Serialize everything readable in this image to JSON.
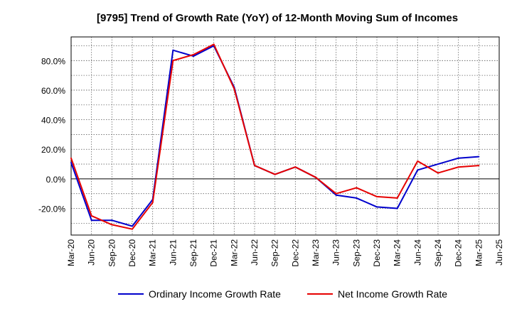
{
  "chart_data": {
    "type": "line",
    "title": "[9795]  Trend of Growth Rate (YoY) of 12-Month Moving Sum of Incomes",
    "xlabel": "",
    "ylabel": "",
    "x": [
      "Mar-20",
      "Jun-20",
      "Sep-20",
      "Dec-20",
      "Mar-21",
      "Jun-21",
      "Sep-21",
      "Dec-21",
      "Mar-22",
      "Jun-22",
      "Sep-22",
      "Dec-22",
      "Mar-23",
      "Jun-23",
      "Sep-23",
      "Dec-23",
      "Mar-24",
      "Jun-24",
      "Sep-24",
      "Dec-24",
      "Mar-25",
      "Jun-25"
    ],
    "ylim": [
      -38,
      96
    ],
    "yticks": [
      -20,
      0,
      20,
      40,
      60,
      80
    ],
    "ytick_labels": [
      "-20.0%",
      "0.0%",
      "20.0%",
      "40.0%",
      "60.0%",
      "80.0%"
    ],
    "grid": true,
    "legend_position": "bottom",
    "series": [
      {
        "name": "Ordinary Income Growth Rate",
        "color": "#0000cc",
        "values": [
          11,
          -28,
          -28,
          -32,
          -14,
          87,
          83,
          90,
          62,
          9,
          3,
          8,
          1,
          -11,
          -13,
          -19,
          -20,
          6,
          10,
          14,
          15,
          null
        ]
      },
      {
        "name": "Net Income Growth Rate",
        "color": "#e60000",
        "values": [
          14,
          -25,
          -31,
          -34,
          -16,
          80,
          84,
          91,
          61,
          9,
          3,
          8,
          1,
          -10,
          -6,
          -12,
          -13,
          12,
          4,
          8,
          9,
          null
        ]
      }
    ]
  }
}
